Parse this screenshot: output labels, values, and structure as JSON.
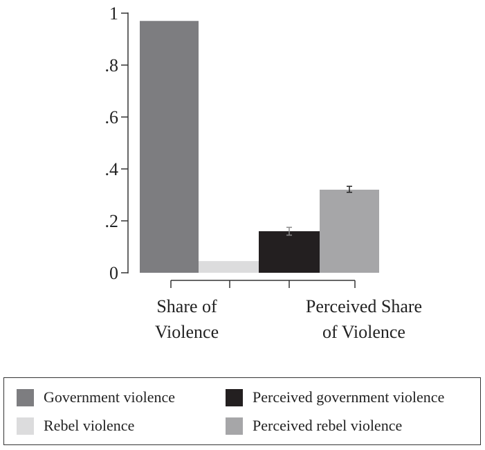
{
  "chart_data": {
    "type": "bar",
    "title": "",
    "xlabel": "",
    "ylabel": "",
    "ylim": [
      0,
      1
    ],
    "yticks": [
      {
        "value": 0,
        "label": "0"
      },
      {
        "value": 0.2,
        "label": ".2"
      },
      {
        "value": 0.4,
        "label": ".4"
      },
      {
        "value": 0.6,
        "label": ".6"
      },
      {
        "value": 0.8,
        "label": ".8"
      },
      {
        "value": 1,
        "label": "1"
      }
    ],
    "groups": [
      {
        "label_lines": [
          "Share of",
          "Violence"
        ],
        "series": [
          "Government violence",
          "Rebel violence"
        ]
      },
      {
        "label_lines": [
          "Perceived Share",
          "of Violence"
        ],
        "series": [
          "Perceived government violence",
          "Perceived rebel violence"
        ]
      }
    ],
    "series": [
      {
        "name": "Government violence",
        "value": 0.97,
        "color": "#7d7d80"
      },
      {
        "name": "Rebel violence",
        "value": 0.045,
        "color": "#dcdcdd"
      },
      {
        "name": "Perceived government violence",
        "value": 0.16,
        "ci": [
          0.145,
          0.175
        ],
        "color": "#231f20"
      },
      {
        "name": "Perceived rebel violence",
        "value": 0.32,
        "ci": [
          0.31,
          0.333
        ],
        "color": "#a6a6a8"
      }
    ],
    "grid": false,
    "legend_position": "bottom"
  },
  "legend": {
    "items": [
      {
        "label": "Government violence",
        "color": "#7d7d80"
      },
      {
        "label": "Perceived government violence",
        "color": "#231f20"
      },
      {
        "label": "Rebel violence",
        "color": "#dcdcdd"
      },
      {
        "label": "Perceived rebel violence",
        "color": "#a6a6a8"
      }
    ]
  }
}
